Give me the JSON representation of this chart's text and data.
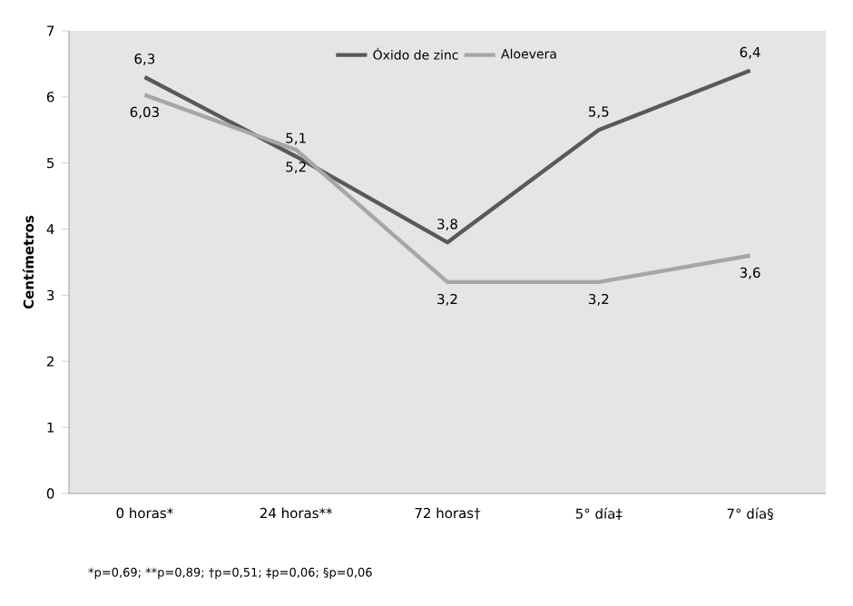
{
  "chart_data": {
    "type": "line",
    "ylabel": "Centímetros",
    "categories": [
      "0 horas*",
      "24 horas**",
      "72 horas†",
      "5° día‡",
      "7° día§"
    ],
    "ylim": [
      0,
      7
    ],
    "yticks": [
      0,
      1,
      2,
      3,
      4,
      5,
      6,
      7
    ],
    "legend": "top",
    "line_style": "solid",
    "marker": "none",
    "series": [
      {
        "name": "Óxido de zinc",
        "color": "#595959",
        "values": [
          6.3,
          5.1,
          3.8,
          5.5,
          6.4
        ],
        "value_labels": [
          "6,3",
          "5,1",
          "3,8",
          "5,5",
          "6,4"
        ]
      },
      {
        "name": "Aloevera",
        "color": "#a6a6a6",
        "values": [
          6.03,
          5.2,
          3.2,
          3.2,
          3.6
        ],
        "value_labels": [
          "6,03",
          "5,2",
          "3,2",
          "3,2",
          "3,6"
        ]
      }
    ],
    "annotations": [
      "*p=0,69; **p=0,89; †p=0,51; ‡p=0,06; §p=0,06"
    ]
  }
}
